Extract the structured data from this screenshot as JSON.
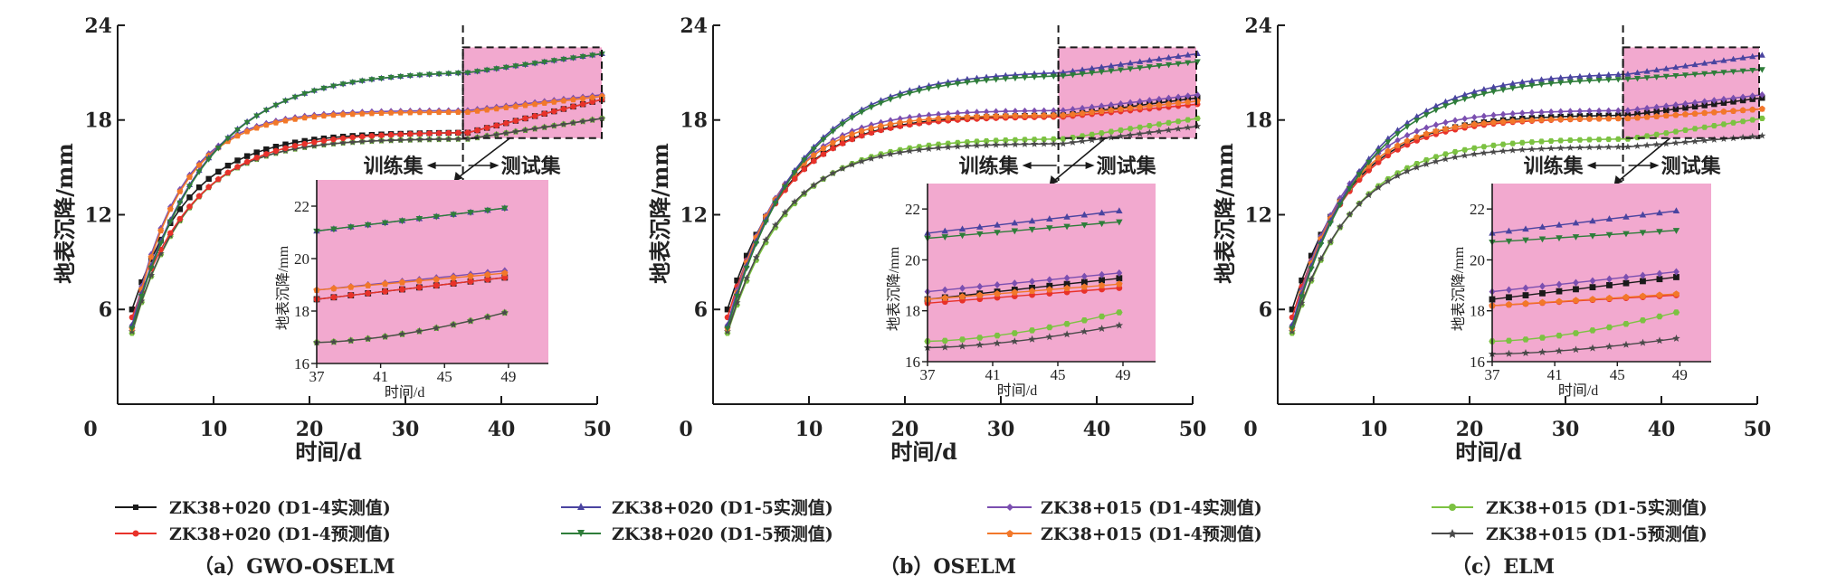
{
  "chart_data": [
    {
      "type": "line",
      "caption": "（a）GWO-OSELM",
      "xlabel": "时间/d",
      "ylabel": "地表沉降/mm",
      "xlim": [
        0,
        50
      ],
      "ylim": [
        0,
        24
      ],
      "xticks": [
        "0",
        "10",
        "20",
        "30",
        "40",
        "50"
      ],
      "yticks": [
        "6",
        "12",
        "18",
        "24"
      ],
      "split_x": 36,
      "train_label": "训练集",
      "test_label": "测试集",
      "series": [
        {
          "name": "ZK38+020 (D1-4实测值)",
          "end": 19.35
        },
        {
          "name": "ZK38+020 (D1-4预测值)",
          "end": 19.35
        },
        {
          "name": "ZK38+020 (D1-5实测值)",
          "end": 22.0
        },
        {
          "name": "ZK38+020 (D1-5预测值)",
          "end": 22.0
        },
        {
          "name": "ZK38+015 (D1-4实测值)",
          "end": 19.6
        },
        {
          "name": "ZK38+015 (D1-4预测值)",
          "end": 19.5
        },
        {
          "name": "ZK38+015 (D1-5实测值)",
          "end": 18.1
        },
        {
          "name": "ZK38+015 (D1-5预测值)",
          "end": 18.1
        }
      ],
      "inset": {
        "xlabel": "时间/d",
        "ylabel": "地表沉降/mm",
        "xlim": [
          37,
          51.5
        ],
        "ylim": [
          16,
          23
        ],
        "xticks": [
          "37",
          "41",
          "45",
          "49"
        ],
        "yticks": [
          "16",
          "18",
          "20",
          "22"
        ],
        "start_values": [
          18.45,
          18.45,
          21.05,
          21.05,
          18.8,
          18.8,
          16.8,
          16.8
        ],
        "end_values": [
          19.35,
          19.35,
          22.0,
          22.0,
          19.6,
          19.5,
          18.1,
          18.1
        ]
      }
    },
    {
      "type": "line",
      "caption": "（b）OSELM",
      "xlabel": "时间/d",
      "ylabel": "地表沉降/mm",
      "xlim": [
        0,
        50
      ],
      "ylim": [
        0,
        24
      ],
      "xticks": [
        "0",
        "10",
        "20",
        "30",
        "40",
        "50"
      ],
      "yticks": [
        "6",
        "12",
        "18",
        "24"
      ],
      "split_x": 36,
      "train_label": "训练集",
      "test_label": "测试集",
      "inset": {
        "xlabel": "时间/d",
        "ylabel": "地表沉降/mm",
        "xlim": [
          37,
          51
        ],
        "ylim": [
          16,
          23
        ],
        "xticks": [
          "37",
          "41",
          "45",
          "49"
        ],
        "yticks": [
          "16",
          "18",
          "20",
          "22"
        ],
        "start_values": [
          18.45,
          18.3,
          21.05,
          20.85,
          18.75,
          18.45,
          16.8,
          16.55
        ],
        "end_values": [
          19.35,
          18.95,
          22.0,
          21.55,
          19.55,
          19.1,
          18.1,
          17.55
        ]
      }
    },
    {
      "type": "line",
      "caption": "（c）ELM",
      "xlabel": "时间/d",
      "ylabel": "地表沉降/mm",
      "xlim": [
        0,
        50
      ],
      "ylim": [
        0,
        24
      ],
      "xticks": [
        "0",
        "10",
        "20",
        "30",
        "40",
        "50"
      ],
      "yticks": [
        "6",
        "12",
        "18",
        "24"
      ],
      "split_x": 36,
      "train_label": "训练集",
      "test_label": "测试集",
      "inset": {
        "xlabel": "时间/d",
        "ylabel": "地表沉降/mm",
        "xlim": [
          37,
          51
        ],
        "ylim": [
          16,
          23
        ],
        "xticks": [
          "37",
          "41",
          "45",
          "49"
        ],
        "yticks": [
          "16",
          "18",
          "20",
          "22"
        ],
        "start_values": [
          18.45,
          18.2,
          21.05,
          20.7,
          18.75,
          18.2,
          16.8,
          16.3
        ],
        "end_values": [
          19.4,
          18.65,
          22.0,
          21.2,
          19.6,
          18.7,
          18.1,
          17.0
        ]
      }
    }
  ],
  "legend": [
    {
      "label": "ZK38+020 (D1-4实测值)",
      "color": "#1a1a1a",
      "marker": "square"
    },
    {
      "label": "ZK38+020 (D1-4预测值)",
      "color": "#e8322a",
      "marker": "circle"
    },
    {
      "label": "ZK38+020 (D1-5实测值)",
      "color": "#4a44a0",
      "marker": "triangle-up"
    },
    {
      "label": "ZK38+020 (D1-5预测值)",
      "color": "#2e7d3a",
      "marker": "triangle-down"
    },
    {
      "label": "ZK38+015 (D1-4实测值)",
      "color": "#7b4fb0",
      "marker": "diamond"
    },
    {
      "label": "ZK38+015 (D1-4预测值)",
      "color": "#f2782a",
      "marker": "pentagon"
    },
    {
      "label": "ZK38+015 (D1-5实测值)",
      "color": "#7cc242",
      "marker": "hexagon"
    },
    {
      "label": "ZK38+015 (D1-5预测值)",
      "color": "#4a4a4a",
      "marker": "star"
    }
  ],
  "colors": {
    "test_region": "#f2a9cf",
    "axis": "#1a1a1a"
  }
}
